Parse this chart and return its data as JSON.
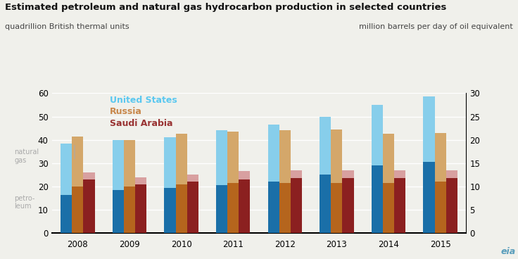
{
  "title": "Estimated petroleum and natural gas hydrocarbon production in selected countries",
  "ylabel_left": "quadrillion British thermal units",
  "ylabel_right": "million barrels per day of oil equivalent",
  "years": [
    2008,
    2009,
    2010,
    2011,
    2012,
    2013,
    2014,
    2015
  ],
  "us_petroleum": [
    16.5,
    18.5,
    19.5,
    20.5,
    22.0,
    25.0,
    29.0,
    30.5
  ],
  "us_natgas": [
    22.0,
    21.5,
    21.5,
    23.5,
    24.5,
    25.0,
    26.0,
    28.0
  ],
  "russia_petroleum": [
    20.0,
    20.0,
    21.0,
    21.5,
    21.5,
    21.5,
    21.5,
    22.0
  ],
  "russia_natgas": [
    21.5,
    20.0,
    21.5,
    22.0,
    22.5,
    23.0,
    21.0,
    21.0
  ],
  "saudi_petroleum": [
    23.0,
    21.0,
    22.0,
    23.0,
    23.5,
    23.5,
    23.5,
    23.5
  ],
  "saudi_natgas": [
    3.0,
    3.0,
    3.0,
    3.5,
    3.5,
    3.5,
    3.5,
    3.5
  ],
  "color_us_petro": "#1a6fa8",
  "color_us_gas": "#87ceeb",
  "color_russia_petro": "#b5651d",
  "color_russia_gas": "#d4a76a",
  "color_saudi_petro": "#8b2020",
  "color_saudi_gas": "#d8a0a0",
  "ylim_left": [
    0,
    60
  ],
  "ylim_right": [
    0,
    30
  ],
  "yticks_left": [
    0,
    10,
    20,
    30,
    40,
    50,
    60
  ],
  "yticks_right": [
    0,
    5,
    10,
    15,
    20,
    25,
    30
  ],
  "background": "#f0f0eb",
  "legend_us_color": "#5bc8f0",
  "legend_russia_color": "#c8874a",
  "legend_saudi_color": "#993333",
  "bar_width": 0.22
}
